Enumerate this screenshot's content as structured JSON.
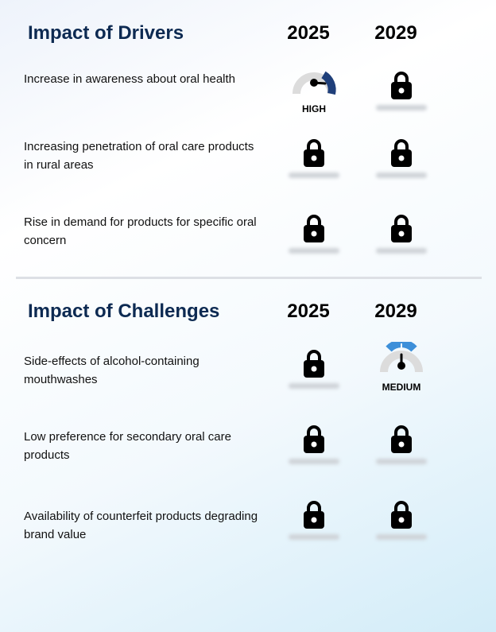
{
  "drivers": {
    "title": "Impact of Drivers",
    "year_1": "2025",
    "year_2": "2029",
    "rows": [
      {
        "label": "Increase in awareness about oral health",
        "y2025": {
          "type": "gauge",
          "level": "HIGH"
        },
        "y2029": {
          "type": "lock"
        }
      },
      {
        "label": "Increasing penetration of oral care products in rural areas",
        "y2025": {
          "type": "lock"
        },
        "y2029": {
          "type": "lock"
        }
      },
      {
        "label": "Rise in demand for products for specific oral concern",
        "y2025": {
          "type": "lock"
        },
        "y2029": {
          "type": "lock"
        }
      }
    ]
  },
  "challenges": {
    "title": "Impact of Challenges",
    "year_1": "2025",
    "year_2": "2029",
    "rows": [
      {
        "label": "Side-effects of alcohol-containing mouthwashes",
        "y2025": {
          "type": "lock"
        },
        "y2029": {
          "type": "gauge",
          "level": "MEDIUM"
        }
      },
      {
        "label": "Low preference for secondary oral care products",
        "y2025": {
          "type": "lock"
        },
        "y2029": {
          "type": "lock"
        }
      },
      {
        "label": "Availability of counterfeit products degrading brand value",
        "y2025": {
          "type": "lock"
        },
        "y2029": {
          "type": "lock"
        }
      }
    ]
  },
  "colors": {
    "heading": "#0d2a52",
    "gauge_high": "#1f3f7a",
    "gauge_medium": "#3d8fd9",
    "gauge_track": "#dcdcdc"
  },
  "icons": {
    "locked_cell": "lock-icon",
    "gauge_cell": "gauge-icon"
  }
}
